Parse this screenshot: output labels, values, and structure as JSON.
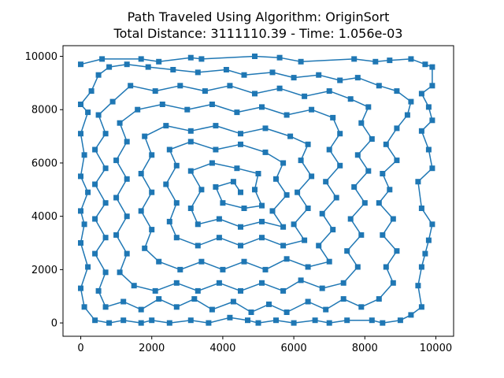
{
  "chart_data": {
    "type": "line",
    "title_line1": "Path Traveled Using Algorithm: OriginSort",
    "title_line2": "Total Distance: 3111110.39 - Time: 1.056e-03",
    "xlabel": "",
    "ylabel": "",
    "xlim": [
      -500,
      10500
    ],
    "ylim": [
      -500,
      10400
    ],
    "x_ticks": [
      0,
      2000,
      4000,
      6000,
      8000,
      10000
    ],
    "y_ticks": [
      0,
      2000,
      4000,
      6000,
      8000,
      10000
    ],
    "grid": false,
    "marker": "square",
    "series": [
      {
        "color": "#1f77b4",
        "points": [
          [
            0,
            9700
          ],
          [
            600,
            9900
          ],
          [
            1700,
            9900
          ],
          [
            2200,
            9800
          ],
          [
            3100,
            9950
          ],
          [
            3400,
            9900
          ],
          [
            4900,
            10000
          ],
          [
            5600,
            9950
          ],
          [
            6200,
            9800
          ],
          [
            7700,
            9900
          ],
          [
            8300,
            9800
          ],
          [
            8700,
            9850
          ],
          [
            9300,
            9900
          ],
          [
            9700,
            9700
          ],
          [
            9900,
            9600
          ],
          [
            9900,
            8900
          ],
          [
            9600,
            8600
          ],
          [
            9800,
            8100
          ],
          [
            9900,
            7600
          ],
          [
            9600,
            7200
          ],
          [
            9800,
            6500
          ],
          [
            9900,
            5800
          ],
          [
            9500,
            5300
          ],
          [
            9600,
            4300
          ],
          [
            9900,
            3700
          ],
          [
            9800,
            3100
          ],
          [
            9700,
            2600
          ],
          [
            9600,
            2100
          ],
          [
            9500,
            1400
          ],
          [
            9600,
            600
          ],
          [
            9300,
            300
          ],
          [
            9000,
            100
          ],
          [
            8500,
            0
          ],
          [
            8200,
            100
          ],
          [
            7500,
            100
          ],
          [
            7000,
            0
          ],
          [
            6600,
            100
          ],
          [
            6000,
            0
          ],
          [
            5500,
            100
          ],
          [
            5000,
            0
          ],
          [
            4700,
            100
          ],
          [
            4200,
            200
          ],
          [
            3600,
            0
          ],
          [
            3100,
            100
          ],
          [
            2500,
            0
          ],
          [
            2000,
            100
          ],
          [
            1700,
            0
          ],
          [
            1200,
            100
          ],
          [
            800,
            0
          ],
          [
            400,
            100
          ],
          [
            100,
            600
          ],
          [
            0,
            1300
          ],
          [
            200,
            2100
          ],
          [
            0,
            3000
          ],
          [
            100,
            3700
          ],
          [
            0,
            4200
          ],
          [
            200,
            4900
          ],
          [
            0,
            5500
          ],
          [
            100,
            6300
          ],
          [
            0,
            7100
          ],
          [
            200,
            7900
          ],
          [
            0,
            8200
          ],
          [
            300,
            8700
          ],
          [
            500,
            9300
          ],
          [
            800,
            9600
          ],
          [
            1300,
            9700
          ],
          [
            1900,
            9600
          ],
          [
            2600,
            9500
          ],
          [
            3300,
            9400
          ],
          [
            4100,
            9500
          ],
          [
            4600,
            9300
          ],
          [
            5400,
            9400
          ],
          [
            6000,
            9200
          ],
          [
            6700,
            9300
          ],
          [
            7300,
            9100
          ],
          [
            7800,
            9200
          ],
          [
            8400,
            8900
          ],
          [
            8900,
            8700
          ],
          [
            9300,
            8300
          ],
          [
            9200,
            7800
          ],
          [
            8900,
            7300
          ],
          [
            8600,
            6700
          ],
          [
            8900,
            6100
          ],
          [
            8500,
            5600
          ],
          [
            8700,
            5000
          ],
          [
            8400,
            4500
          ],
          [
            8800,
            3900
          ],
          [
            8500,
            3300
          ],
          [
            8900,
            2700
          ],
          [
            8600,
            2100
          ],
          [
            8800,
            1500
          ],
          [
            8400,
            900
          ],
          [
            7900,
            600
          ],
          [
            7400,
            900
          ],
          [
            6900,
            500
          ],
          [
            6400,
            800
          ],
          [
            5800,
            400
          ],
          [
            5300,
            700
          ],
          [
            4800,
            400
          ],
          [
            4300,
            800
          ],
          [
            3700,
            500
          ],
          [
            3200,
            900
          ],
          [
            2700,
            600
          ],
          [
            2200,
            900
          ],
          [
            1700,
            500
          ],
          [
            1200,
            800
          ],
          [
            700,
            600
          ],
          [
            500,
            1200
          ],
          [
            700,
            1900
          ],
          [
            400,
            2600
          ],
          [
            700,
            3200
          ],
          [
            400,
            3900
          ],
          [
            700,
            4500
          ],
          [
            400,
            5200
          ],
          [
            700,
            5800
          ],
          [
            400,
            6500
          ],
          [
            700,
            7100
          ],
          [
            500,
            7800
          ],
          [
            900,
            8300
          ],
          [
            1400,
            8900
          ],
          [
            2100,
            8700
          ],
          [
            2800,
            8900
          ],
          [
            3500,
            8700
          ],
          [
            4200,
            8900
          ],
          [
            4900,
            8600
          ],
          [
            5600,
            8800
          ],
          [
            6300,
            8500
          ],
          [
            7000,
            8700
          ],
          [
            7600,
            8400
          ],
          [
            8100,
            8100
          ],
          [
            7900,
            7500
          ],
          [
            8200,
            6900
          ],
          [
            7800,
            6300
          ],
          [
            8100,
            5700
          ],
          [
            7700,
            5100
          ],
          [
            8000,
            4500
          ],
          [
            7600,
            3900
          ],
          [
            7900,
            3300
          ],
          [
            7500,
            2700
          ],
          [
            7800,
            2100
          ],
          [
            7400,
            1500
          ],
          [
            6800,
            1300
          ],
          [
            6200,
            1600
          ],
          [
            5700,
            1200
          ],
          [
            5100,
            1500
          ],
          [
            4500,
            1200
          ],
          [
            3900,
            1500
          ],
          [
            3300,
            1200
          ],
          [
            2700,
            1500
          ],
          [
            2100,
            1200
          ],
          [
            1500,
            1400
          ],
          [
            1100,
            1900
          ],
          [
            1300,
            2600
          ],
          [
            1000,
            3300
          ],
          [
            1300,
            4000
          ],
          [
            1000,
            4700
          ],
          [
            1300,
            5400
          ],
          [
            1000,
            6100
          ],
          [
            1300,
            6800
          ],
          [
            1100,
            7500
          ],
          [
            1600,
            8000
          ],
          [
            2300,
            8200
          ],
          [
            3000,
            8000
          ],
          [
            3700,
            8200
          ],
          [
            4400,
            7900
          ],
          [
            5100,
            8100
          ],
          [
            5800,
            7800
          ],
          [
            6500,
            8000
          ],
          [
            7100,
            7700
          ],
          [
            7300,
            7100
          ],
          [
            7000,
            6500
          ],
          [
            7300,
            5900
          ],
          [
            6900,
            5300
          ],
          [
            7200,
            4700
          ],
          [
            6800,
            4100
          ],
          [
            7100,
            3500
          ],
          [
            6700,
            2900
          ],
          [
            7000,
            2300
          ],
          [
            6400,
            2100
          ],
          [
            5800,
            2400
          ],
          [
            5200,
            2000
          ],
          [
            4600,
            2300
          ],
          [
            4000,
            2000
          ],
          [
            3400,
            2300
          ],
          [
            2800,
            2000
          ],
          [
            2200,
            2300
          ],
          [
            1800,
            2800
          ],
          [
            2000,
            3500
          ],
          [
            1700,
            4200
          ],
          [
            2000,
            4900
          ],
          [
            1700,
            5600
          ],
          [
            2000,
            6300
          ],
          [
            1800,
            7000
          ],
          [
            2400,
            7400
          ],
          [
            3100,
            7200
          ],
          [
            3800,
            7400
          ],
          [
            4500,
            7100
          ],
          [
            5200,
            7300
          ],
          [
            5900,
            7000
          ],
          [
            6400,
            6700
          ],
          [
            6200,
            6100
          ],
          [
            6500,
            5500
          ],
          [
            6100,
            4900
          ],
          [
            6400,
            4300
          ],
          [
            6000,
            3700
          ],
          [
            6300,
            3100
          ],
          [
            5700,
            2900
          ],
          [
            5100,
            3200
          ],
          [
            4500,
            2900
          ],
          [
            3900,
            3200
          ],
          [
            3300,
            2900
          ],
          [
            2700,
            3200
          ],
          [
            2500,
            3800
          ],
          [
            2700,
            4500
          ],
          [
            2400,
            5200
          ],
          [
            2700,
            5900
          ],
          [
            2500,
            6500
          ],
          [
            3100,
            6800
          ],
          [
            3800,
            6500
          ],
          [
            4500,
            6700
          ],
          [
            5200,
            6400
          ],
          [
            5700,
            6000
          ],
          [
            5500,
            5400
          ],
          [
            5800,
            4800
          ],
          [
            5400,
            4200
          ],
          [
            5700,
            3600
          ],
          [
            5100,
            3800
          ],
          [
            4500,
            3600
          ],
          [
            3900,
            3900
          ],
          [
            3300,
            3700
          ],
          [
            3100,
            4300
          ],
          [
            3400,
            5000
          ],
          [
            3100,
            5700
          ],
          [
            3700,
            6000
          ],
          [
            4400,
            5800
          ],
          [
            5000,
            5600
          ],
          [
            4900,
            5000
          ],
          [
            5100,
            4400
          ],
          [
            4600,
            4300
          ],
          [
            4000,
            4500
          ],
          [
            3800,
            5100
          ],
          [
            4300,
            5300
          ],
          [
            4500,
            4900
          ]
        ]
      }
    ]
  }
}
